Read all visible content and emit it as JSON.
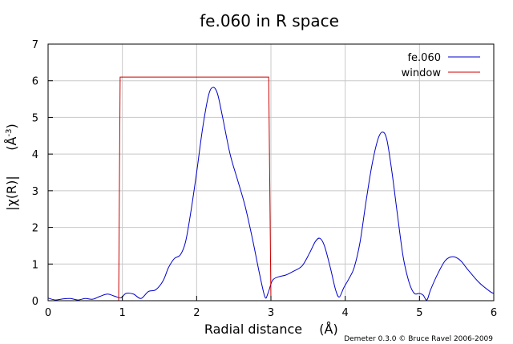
{
  "chart_data": {
    "type": "line",
    "title": "fe.060 in R space",
    "xlabel": "Radial distance",
    "xunit": "(Å)",
    "ylabel": "|χ(R)|",
    "yunit": "(Å",
    "yunit_exp": "-3",
    "yunit_close": ")",
    "xlim": [
      0,
      6
    ],
    "ylim": [
      0,
      7
    ],
    "x_ticks": [
      "0",
      "1",
      "2",
      "3",
      "4",
      "5",
      "6"
    ],
    "y_ticks": [
      "0",
      "1",
      "2",
      "3",
      "4",
      "5",
      "6",
      "7"
    ],
    "grid": true,
    "legend_position": "top-right",
    "series": [
      {
        "name": "fe.060",
        "color": "#0000cc",
        "points": [
          [
            0.0,
            0.07
          ],
          [
            0.1,
            0.02
          ],
          [
            0.2,
            0.05
          ],
          [
            0.3,
            0.06
          ],
          [
            0.4,
            0.02
          ],
          [
            0.5,
            0.06
          ],
          [
            0.6,
            0.04
          ],
          [
            0.7,
            0.12
          ],
          [
            0.8,
            0.18
          ],
          [
            0.9,
            0.12
          ],
          [
            0.98,
            0.08
          ],
          [
            1.05,
            0.2
          ],
          [
            1.15,
            0.18
          ],
          [
            1.25,
            0.06
          ],
          [
            1.35,
            0.25
          ],
          [
            1.45,
            0.3
          ],
          [
            1.55,
            0.55
          ],
          [
            1.62,
            0.9
          ],
          [
            1.7,
            1.15
          ],
          [
            1.78,
            1.25
          ],
          [
            1.85,
            1.6
          ],
          [
            1.92,
            2.4
          ],
          [
            2.0,
            3.5
          ],
          [
            2.08,
            4.7
          ],
          [
            2.16,
            5.6
          ],
          [
            2.22,
            5.82
          ],
          [
            2.28,
            5.65
          ],
          [
            2.35,
            5.0
          ],
          [
            2.45,
            4.0
          ],
          [
            2.55,
            3.3
          ],
          [
            2.65,
            2.6
          ],
          [
            2.75,
            1.7
          ],
          [
            2.85,
            0.7
          ],
          [
            2.92,
            0.1
          ],
          [
            2.96,
            0.2
          ],
          [
            3.02,
            0.55
          ],
          [
            3.1,
            0.65
          ],
          [
            3.2,
            0.7
          ],
          [
            3.3,
            0.8
          ],
          [
            3.42,
            0.95
          ],
          [
            3.52,
            1.3
          ],
          [
            3.6,
            1.62
          ],
          [
            3.66,
            1.7
          ],
          [
            3.72,
            1.5
          ],
          [
            3.8,
            0.9
          ],
          [
            3.87,
            0.3
          ],
          [
            3.92,
            0.1
          ],
          [
            3.98,
            0.35
          ],
          [
            4.05,
            0.6
          ],
          [
            4.12,
            0.9
          ],
          [
            4.2,
            1.6
          ],
          [
            4.28,
            2.7
          ],
          [
            4.36,
            3.7
          ],
          [
            4.44,
            4.4
          ],
          [
            4.5,
            4.6
          ],
          [
            4.56,
            4.4
          ],
          [
            4.63,
            3.5
          ],
          [
            4.7,
            2.4
          ],
          [
            4.78,
            1.2
          ],
          [
            4.86,
            0.5
          ],
          [
            4.93,
            0.2
          ],
          [
            5.0,
            0.2
          ],
          [
            5.05,
            0.15
          ],
          [
            5.1,
            0.02
          ],
          [
            5.15,
            0.3
          ],
          [
            5.25,
            0.75
          ],
          [
            5.35,
            1.1
          ],
          [
            5.45,
            1.2
          ],
          [
            5.55,
            1.1
          ],
          [
            5.65,
            0.85
          ],
          [
            5.8,
            0.5
          ],
          [
            5.95,
            0.25
          ],
          [
            6.0,
            0.2
          ]
        ]
      },
      {
        "name": "window",
        "color": "#cc0000",
        "points": [
          [
            0.0,
            0.0
          ],
          [
            0.95,
            0.0
          ],
          [
            0.97,
            6.1
          ],
          [
            2.97,
            6.1
          ],
          [
            3.0,
            0.0
          ],
          [
            6.0,
            0.0
          ]
        ]
      }
    ]
  },
  "footer": {
    "credit": "Demeter 0.3.0 © Bruce Ravel 2006-2009"
  }
}
